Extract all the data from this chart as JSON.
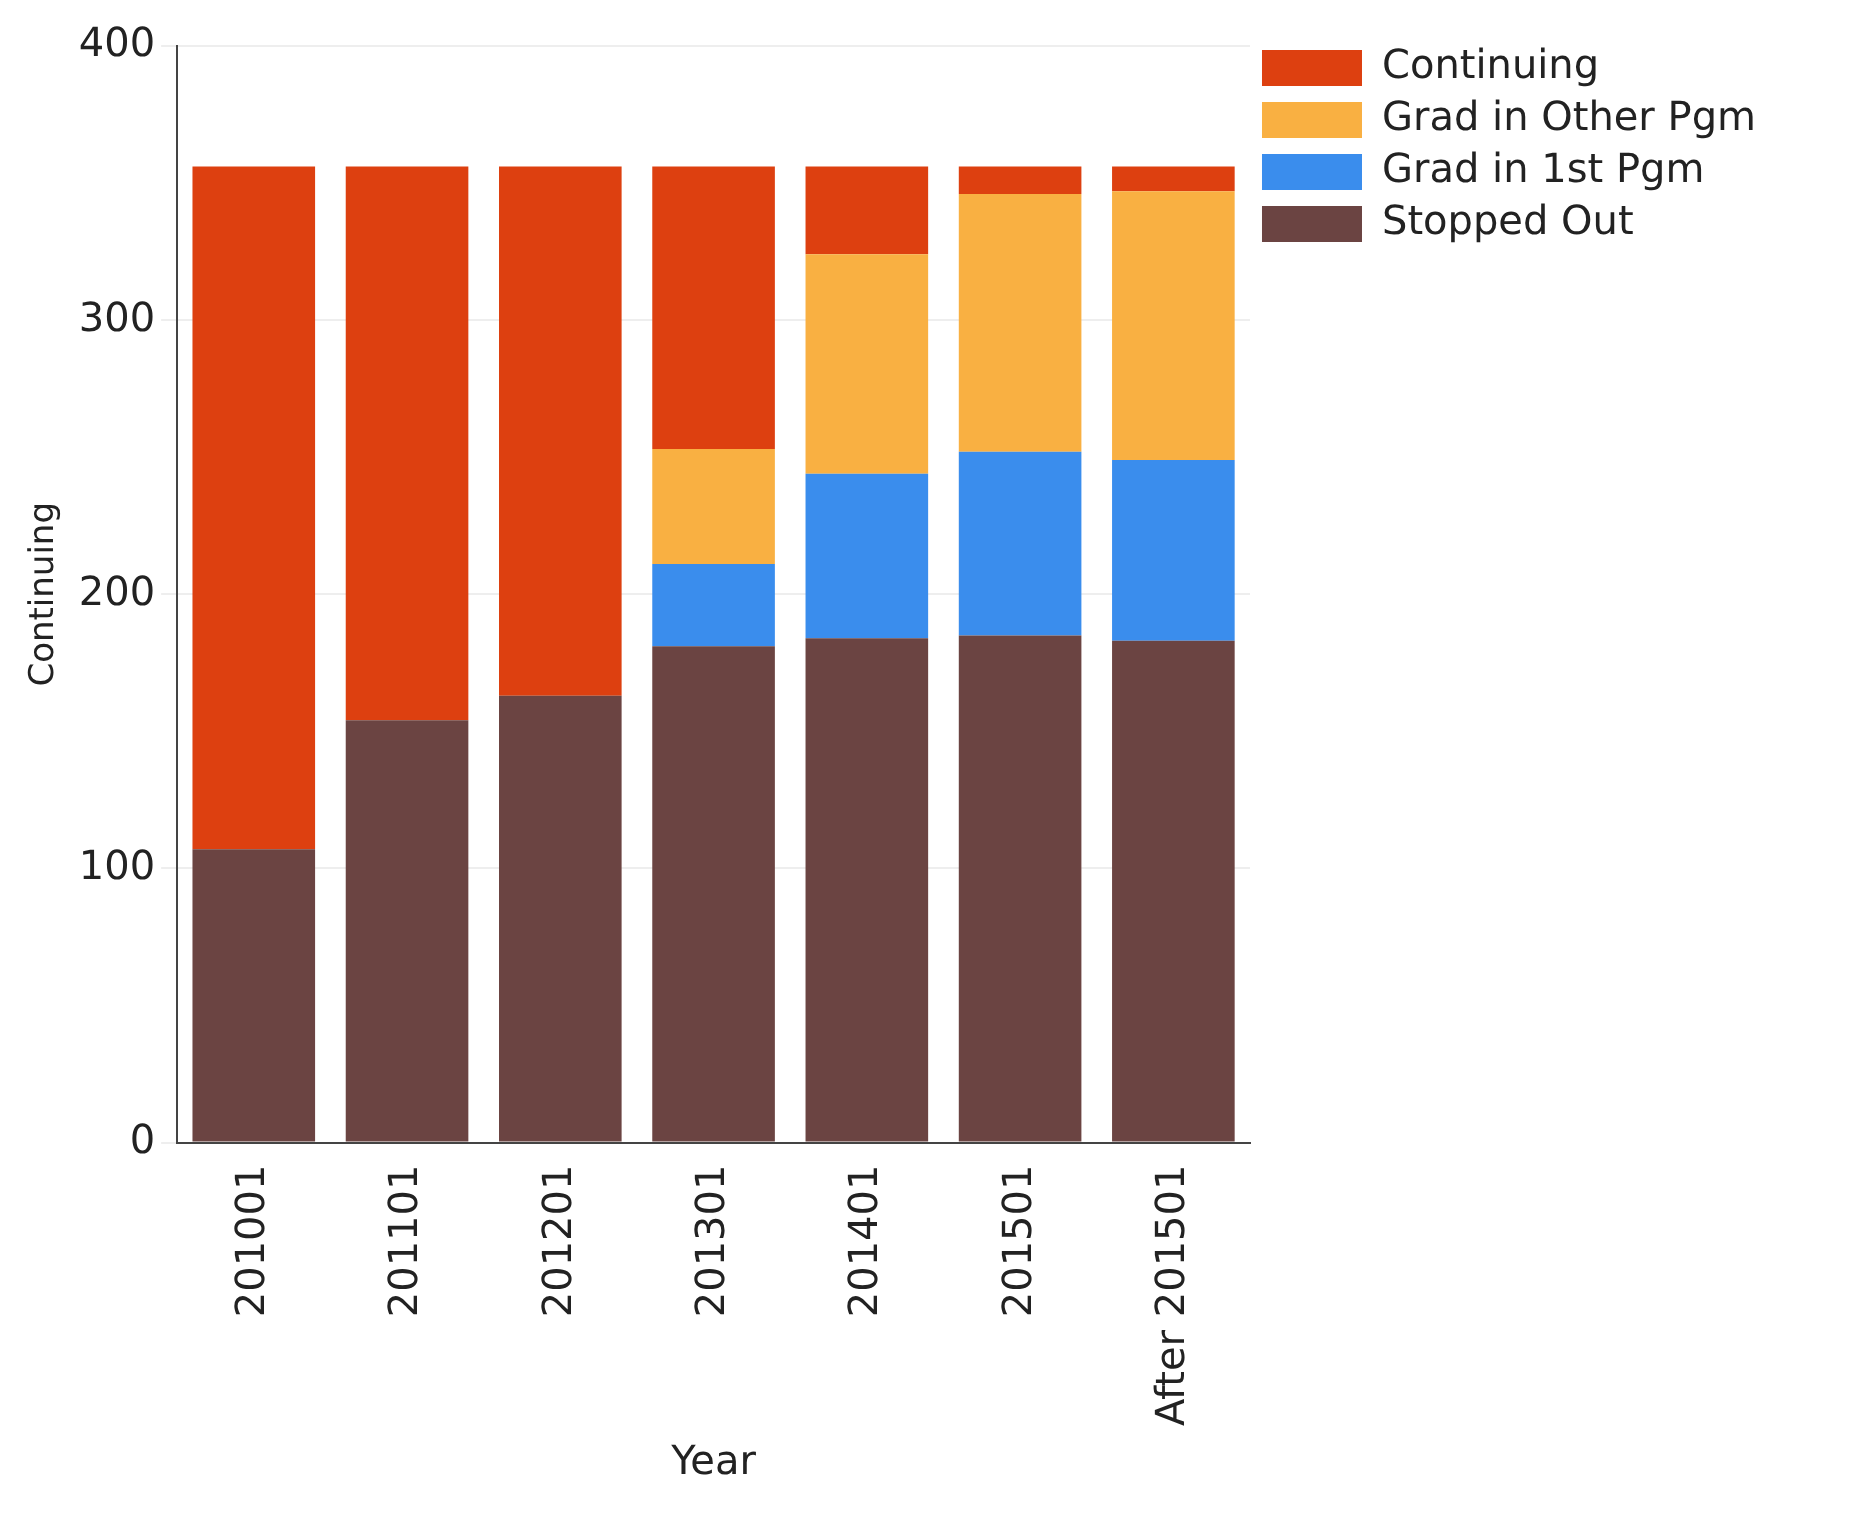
{
  "chart_data": {
    "type": "bar",
    "xlabel": "Year",
    "ylabel": "Continuing",
    "categories": [
      "201001",
      "201101",
      "201201",
      "201301",
      "201401",
      "201501",
      "After 201501"
    ],
    "series": [
      {
        "name": "Stopped Out",
        "color": "#6b4442",
        "values": [
          107,
          154,
          163,
          181,
          184,
          185,
          183
        ]
      },
      {
        "name": "Grad in 1st Pgm",
        "color": "#3a8ded",
        "values": [
          0,
          0,
          0,
          30,
          60,
          67,
          66
        ]
      },
      {
        "name": "Grad in Other Pgm",
        "color": "#f9b042",
        "values": [
          0,
          0,
          0,
          42,
          80,
          94,
          98
        ]
      },
      {
        "name": "Continuing",
        "color": "#dd4010",
        "values": [
          249,
          202,
          193,
          103,
          32,
          10,
          9
        ]
      }
    ],
    "stacked": true,
    "ylim": [
      0,
      400
    ],
    "yticks": [
      0,
      100,
      200,
      300,
      400
    ],
    "grid": "y",
    "legend": "top right"
  }
}
